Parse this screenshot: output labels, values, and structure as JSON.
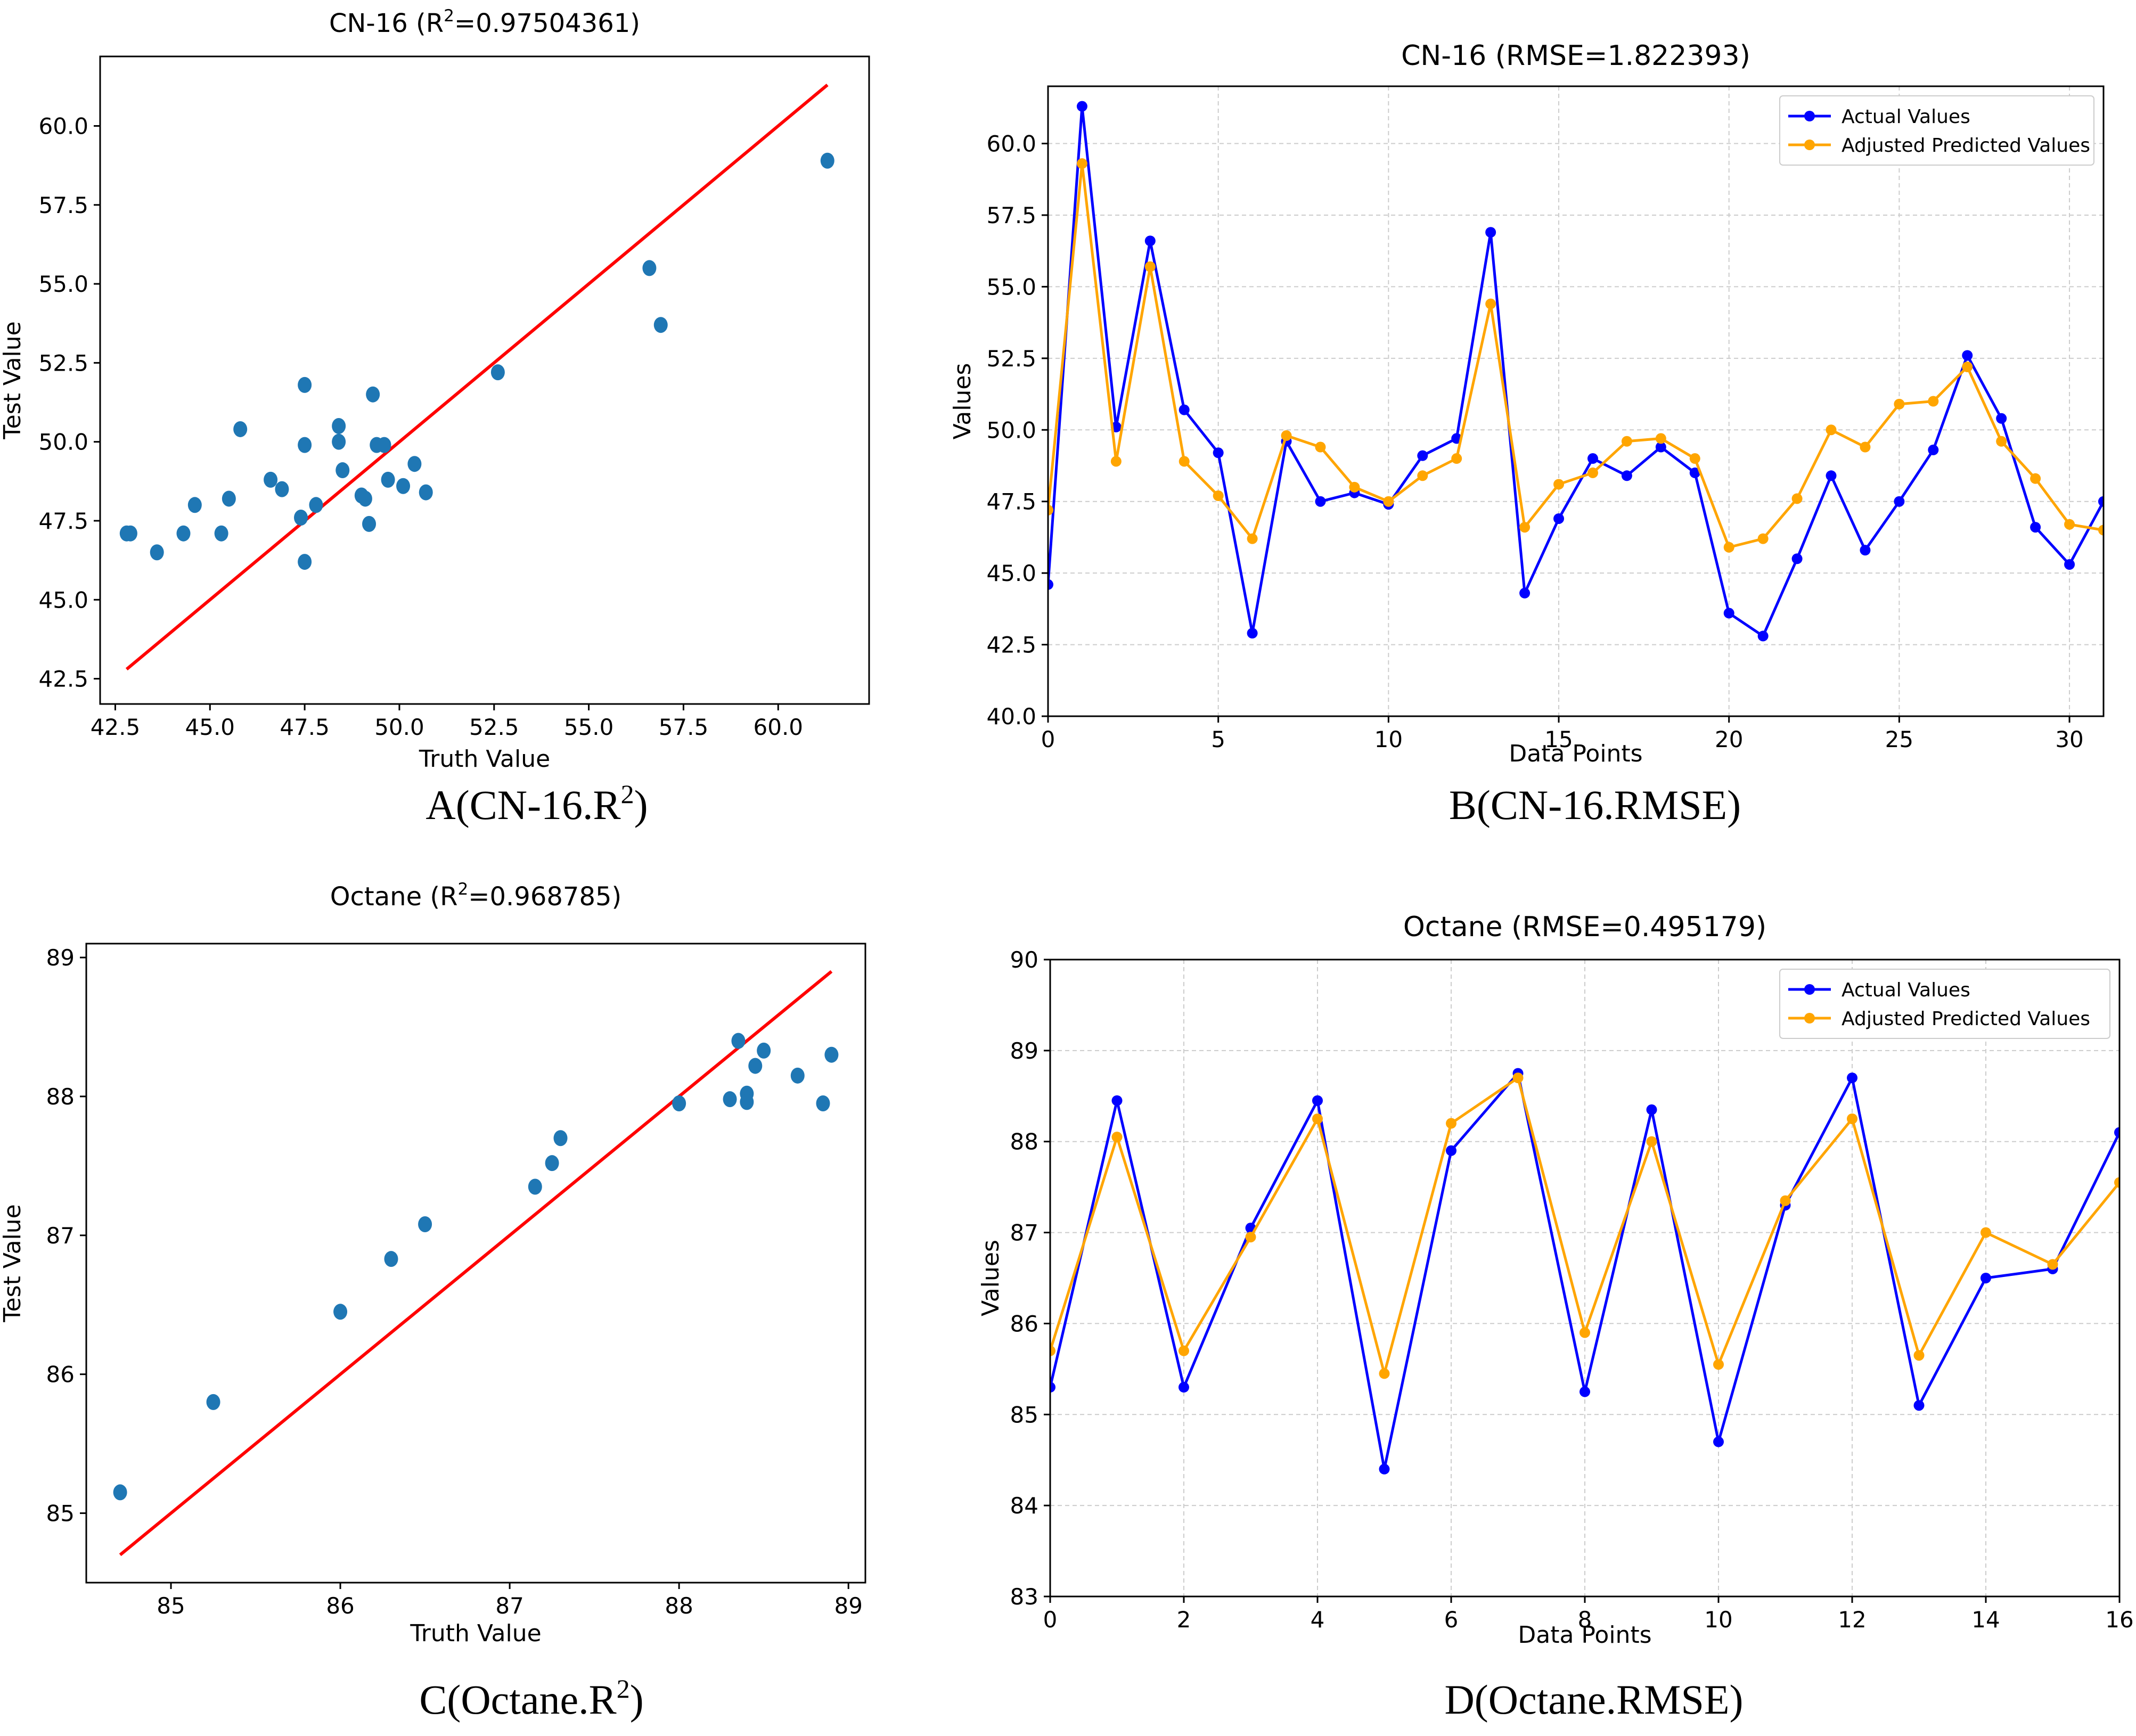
{
  "captions": [
    "A(CN-16.R",
    "B(CN-16.RMSE)",
    "C(Octane.R",
    "D(Octane.RMSE)"
  ],
  "caption_sup": "2",
  "caption_close": ")",
  "colors": {
    "scatter": "#1f77b4",
    "fit_line": "#ff0000",
    "actual": "#0000ff",
    "predicted": "#ffa500",
    "grid": "#cccccc"
  },
  "chart_data": [
    {
      "type": "scatter",
      "title_pre": "CN-16 (R",
      "title_sup": "2",
      "title_post": "=0.97504361)",
      "xlabel": "Truth Value",
      "ylabel": "Test Value",
      "xlim": [
        42.1,
        62.4
      ],
      "ylim": [
        41.7,
        62.2
      ],
      "xticks": [
        42.5,
        45.0,
        47.5,
        50.0,
        52.5,
        55.0,
        57.5,
        60.0
      ],
      "yticks": [
        42.5,
        45.0,
        47.5,
        50.0,
        52.5,
        55.0,
        57.5,
        60.0
      ],
      "tick_decimals": 1,
      "grid": false,
      "points": [
        [
          42.8,
          47.1
        ],
        [
          42.9,
          47.1
        ],
        [
          43.6,
          46.5
        ],
        [
          44.3,
          47.1
        ],
        [
          44.6,
          48.0
        ],
        [
          45.3,
          47.1
        ],
        [
          45.5,
          48.2
        ],
        [
          45.8,
          50.4
        ],
        [
          46.6,
          48.8
        ],
        [
          46.9,
          48.5
        ],
        [
          47.4,
          47.6
        ],
        [
          47.5,
          51.8
        ],
        [
          47.5,
          49.9
        ],
        [
          47.5,
          46.2
        ],
        [
          47.8,
          48.0
        ],
        [
          48.4,
          50.5
        ],
        [
          48.4,
          50.0
        ],
        [
          48.5,
          49.1
        ],
        [
          49.0,
          48.3
        ],
        [
          49.1,
          48.2
        ],
        [
          49.2,
          47.4
        ],
        [
          49.3,
          51.5
        ],
        [
          49.4,
          49.9
        ],
        [
          49.6,
          49.9
        ],
        [
          49.7,
          48.8
        ],
        [
          50.1,
          48.6
        ],
        [
          50.4,
          49.3
        ],
        [
          50.7,
          48.4
        ],
        [
          52.6,
          52.2
        ],
        [
          56.6,
          55.5
        ],
        [
          56.9,
          53.7
        ],
        [
          61.3,
          58.9
        ]
      ],
      "fit_line": [
        [
          42.8,
          42.8
        ],
        [
          61.3,
          61.3
        ]
      ]
    },
    {
      "type": "line",
      "title": "CN-16 (RMSE=1.822393)",
      "xlabel": "Data Points",
      "ylabel": "Values",
      "xlim": [
        0,
        31
      ],
      "ylim": [
        40,
        62
      ],
      "xticks": [
        0,
        5,
        10,
        15,
        20,
        25,
        30
      ],
      "yticks": [
        40.0,
        42.5,
        45.0,
        47.5,
        50.0,
        52.5,
        55.0,
        57.5,
        60.0
      ],
      "tick_decimals": 1,
      "x_tick_decimals": 0,
      "grid": true,
      "legend": "top-right",
      "series": [
        {
          "name": "Actual Values",
          "values": [
            44.6,
            61.3,
            50.1,
            56.6,
            50.7,
            49.2,
            42.9,
            49.6,
            47.5,
            47.8,
            47.4,
            49.1,
            49.7,
            56.9,
            44.3,
            46.9,
            49.0,
            48.4,
            49.4,
            48.5,
            43.6,
            42.8,
            45.5,
            48.4,
            45.8,
            47.5,
            49.3,
            52.6,
            50.4,
            46.6,
            45.3,
            47.5
          ]
        },
        {
          "name": "Adjusted Predicted Values",
          "values": [
            47.2,
            59.3,
            48.9,
            55.7,
            48.9,
            47.7,
            46.2,
            49.8,
            49.4,
            48.0,
            47.5,
            48.4,
            49.0,
            54.4,
            46.6,
            48.1,
            48.5,
            49.6,
            49.7,
            49.0,
            45.9,
            46.2,
            47.6,
            50.0,
            49.4,
            50.9,
            51.0,
            52.2,
            49.6,
            48.3,
            46.7,
            46.5
          ]
        }
      ]
    },
    {
      "type": "scatter",
      "title_pre": "Octane (R",
      "title_sup": "2",
      "title_post": "=0.968785)",
      "xlabel": "Truth Value",
      "ylabel": "Test Value",
      "xlim": [
        84.5,
        89.1
      ],
      "ylim": [
        84.5,
        89.1
      ],
      "xticks": [
        85,
        86,
        87,
        88,
        89
      ],
      "yticks": [
        85,
        86,
        87,
        88,
        89
      ],
      "tick_decimals": 0,
      "grid": false,
      "points": [
        [
          84.7,
          85.15
        ],
        [
          85.25,
          85.8
        ],
        [
          86.0,
          86.45
        ],
        [
          86.3,
          86.83
        ],
        [
          86.5,
          87.08
        ],
        [
          87.15,
          87.35
        ],
        [
          87.25,
          87.52
        ],
        [
          87.3,
          87.7
        ],
        [
          88.0,
          87.95
        ],
        [
          88.3,
          87.98
        ],
        [
          88.35,
          88.4
        ],
        [
          88.4,
          88.02
        ],
        [
          88.4,
          87.96
        ],
        [
          88.45,
          88.22
        ],
        [
          88.5,
          88.33
        ],
        [
          88.7,
          88.15
        ],
        [
          88.85,
          87.95
        ],
        [
          88.9,
          88.3
        ]
      ],
      "fit_line": [
        [
          84.7,
          84.7
        ],
        [
          88.9,
          88.9
        ]
      ]
    },
    {
      "type": "line",
      "title": "Octane (RMSE=0.495179)",
      "xlabel": "Data Points",
      "ylabel": "Values",
      "xlim": [
        0,
        16
      ],
      "ylim": [
        83,
        90
      ],
      "xticks": [
        0,
        2,
        4,
        6,
        8,
        10,
        12,
        14,
        16
      ],
      "yticks": [
        83,
        84,
        85,
        86,
        87,
        88,
        89,
        90
      ],
      "tick_decimals": 0,
      "x_tick_decimals": 0,
      "grid": true,
      "legend": "top-right",
      "series": [
        {
          "name": "Actual Values",
          "values": [
            85.3,
            88.45,
            85.3,
            87.05,
            88.45,
            84.4,
            87.9,
            88.75,
            85.25,
            88.35,
            84.7,
            87.3,
            88.7,
            85.1,
            86.5,
            86.6,
            88.1
          ]
        },
        {
          "name": "Adjusted Predicted Values",
          "values": [
            85.7,
            88.05,
            85.7,
            86.95,
            88.25,
            85.45,
            88.2,
            88.7,
            85.9,
            88.0,
            85.55,
            87.35,
            88.25,
            85.65,
            87.0,
            86.65,
            87.55
          ]
        }
      ]
    }
  ]
}
